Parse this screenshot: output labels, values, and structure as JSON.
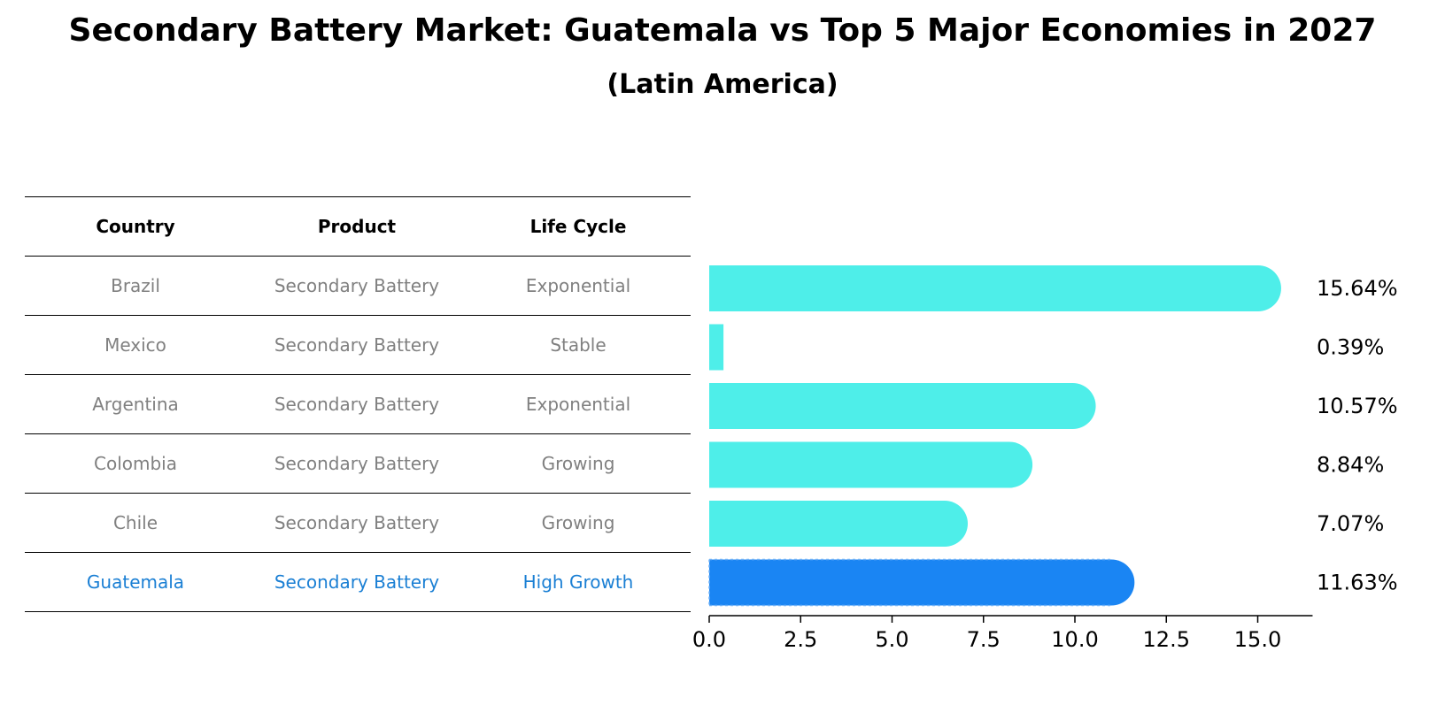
{
  "titles": {
    "main": "Secondary Battery Market: Guatemala vs Top 5 Major Economies in 2027",
    "sub": "(Latin America)"
  },
  "table": {
    "headers": [
      "Country",
      "Product",
      "Life Cycle"
    ],
    "rows": [
      [
        "Brazil",
        "Secondary Battery",
        "Exponential"
      ],
      [
        "Mexico",
        "Secondary Battery",
        "Stable"
      ],
      [
        "Argentina",
        "Secondary Battery",
        "Exponential"
      ],
      [
        "Colombia",
        "Secondary Battery",
        "Growing"
      ],
      [
        "Chile",
        "Secondary Battery",
        "Growing"
      ],
      [
        "Guatemala",
        "Secondary Battery",
        "High Growth"
      ]
    ]
  },
  "colors": {
    "bar": "#4eeee9",
    "highlight": "#1a85f3",
    "highlight_text": "#1a7fd4"
  },
  "chart_data": {
    "type": "bar",
    "orientation": "horizontal",
    "categories": [
      "Brazil",
      "Mexico",
      "Argentina",
      "Colombia",
      "Chile",
      "Guatemala"
    ],
    "values": [
      15.64,
      0.39,
      10.57,
      8.84,
      7.07,
      11.63
    ],
    "labels": [
      "15.64%",
      "0.39%",
      "10.57%",
      "8.84%",
      "7.07%",
      "11.63%"
    ],
    "highlight": "Guatemala",
    "xticks": [
      "0.0",
      "2.5",
      "5.0",
      "7.5",
      "10.0",
      "12.5",
      "15.0"
    ],
    "xlim": [
      0,
      16.5
    ],
    "title": "Secondary Battery Market: Guatemala vs Top 5 Major Economies in 2027"
  }
}
